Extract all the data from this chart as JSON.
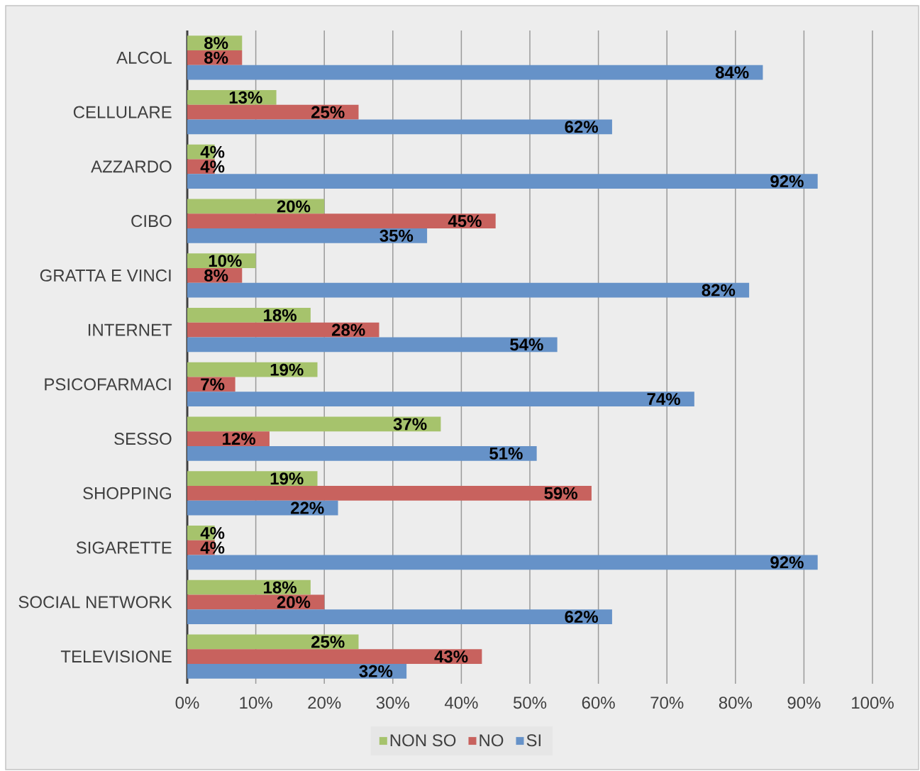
{
  "chart_data": {
    "type": "bar",
    "orientation": "horizontal",
    "categories": [
      "ALCOL",
      "CELLULARE",
      "AZZARDO",
      "CIBO",
      "GRATTA E VINCI",
      "INTERNET",
      "PSICOFARMACI",
      "SESSO",
      "SHOPPING",
      "SIGARETTE",
      "SOCIAL NETWORK",
      "TELEVISIONE"
    ],
    "series": [
      {
        "name": "NON SO",
        "color": "#a6c36c",
        "values": [
          8,
          13,
          4,
          20,
          10,
          18,
          19,
          37,
          19,
          4,
          18,
          25
        ],
        "value_labels": [
          "8%",
          "13%",
          "4%",
          "20%",
          "10%",
          "18%",
          "19%",
          "37%",
          "19%",
          "4%",
          "18%",
          "25%"
        ]
      },
      {
        "name": "NO",
        "color": "#c8625e",
        "values": [
          8,
          25,
          4,
          45,
          8,
          28,
          7,
          12,
          59,
          4,
          20,
          43
        ],
        "value_labels": [
          "8%",
          "25%",
          "4%",
          "45%",
          "8%",
          "28%",
          "7%",
          "12%",
          "59%",
          "4%",
          "20%",
          "43%"
        ]
      },
      {
        "name": "SI",
        "color": "#6692c8",
        "values": [
          84,
          62,
          92,
          35,
          82,
          54,
          74,
          51,
          22,
          92,
          62,
          32
        ],
        "value_labels": [
          "84%",
          "62%",
          "92%",
          "35%",
          "82%",
          "54%",
          "74%",
          "51%",
          "22%",
          "92%",
          "62%",
          "32%"
        ]
      }
    ],
    "xlim": [
      0,
      100
    ],
    "xticks": [
      {
        "value": 0,
        "label": "0%"
      },
      {
        "value": 10,
        "label": "10%"
      },
      {
        "value": 20,
        "label": "20%"
      },
      {
        "value": 30,
        "label": "30%"
      },
      {
        "value": 40,
        "label": "40%"
      },
      {
        "value": 50,
        "label": "50%"
      },
      {
        "value": 60,
        "label": "60%"
      },
      {
        "value": 70,
        "label": "70%"
      },
      {
        "value": 80,
        "label": "80%"
      },
      {
        "value": 90,
        "label": "90%"
      },
      {
        "value": 100,
        "label": "100%"
      }
    ],
    "grid": "x",
    "legend": "bottom"
  }
}
